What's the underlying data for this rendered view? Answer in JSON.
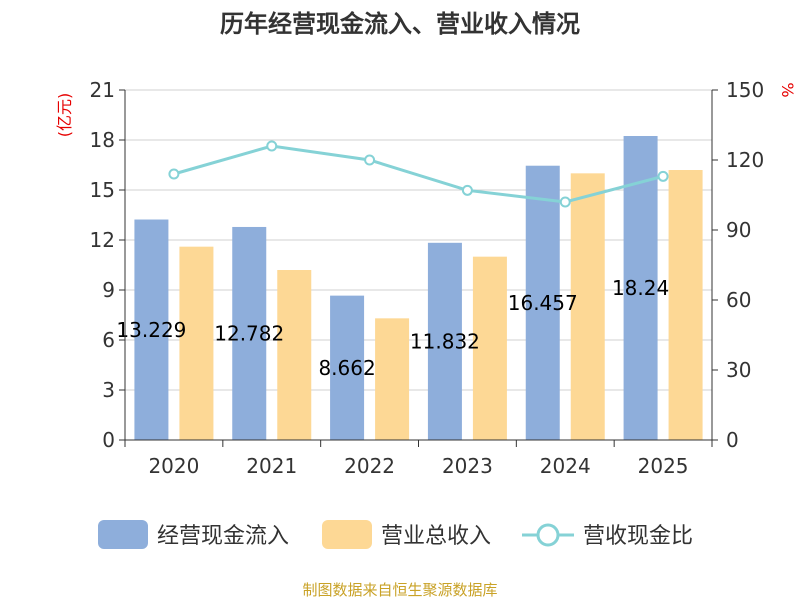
{
  "chart_data": {
    "type": "bar",
    "title": "历年经营现金流入、营业收入情况",
    "categories": [
      "2020",
      "2021",
      "2022",
      "2023",
      "2024",
      "2025"
    ],
    "series": [
      {
        "name": "经营现金流入",
        "kind": "bar",
        "axis": "left",
        "color": "#8eaedb",
        "values": [
          13.229,
          12.782,
          8.662,
          11.832,
          16.457,
          18.24
        ]
      },
      {
        "name": "营业总收入",
        "kind": "bar",
        "axis": "left",
        "color": "#fdd895",
        "values": [
          11.6,
          10.2,
          7.3,
          11.0,
          16.0,
          16.2
        ]
      },
      {
        "name": "营收现金比",
        "kind": "line",
        "axis": "right",
        "color": "#85d2d6",
        "values": [
          114,
          126,
          120,
          107,
          102,
          113
        ]
      }
    ],
    "data_labels": [
      "13.229",
      "12.782",
      "8.662",
      "11.832",
      "16.457",
      "18.24"
    ],
    "y_left": {
      "unit": "(亿元)",
      "ylim": [
        0,
        21
      ],
      "ticks": [
        "0",
        "3",
        "6",
        "9",
        "12",
        "15",
        "18",
        "21"
      ]
    },
    "y_right": {
      "unit": "%",
      "ylim": [
        0,
        150
      ],
      "ticks": [
        "0",
        "30",
        "60",
        "90",
        "120",
        "150"
      ]
    },
    "grid": true,
    "legend_position": "bottom"
  },
  "source": "制图数据来自恒生聚源数据库",
  "colors": {
    "unit_red": "#e60000",
    "source_gold": "#c9a227",
    "grid": "#d0d0d0",
    "axis": "#333333"
  }
}
